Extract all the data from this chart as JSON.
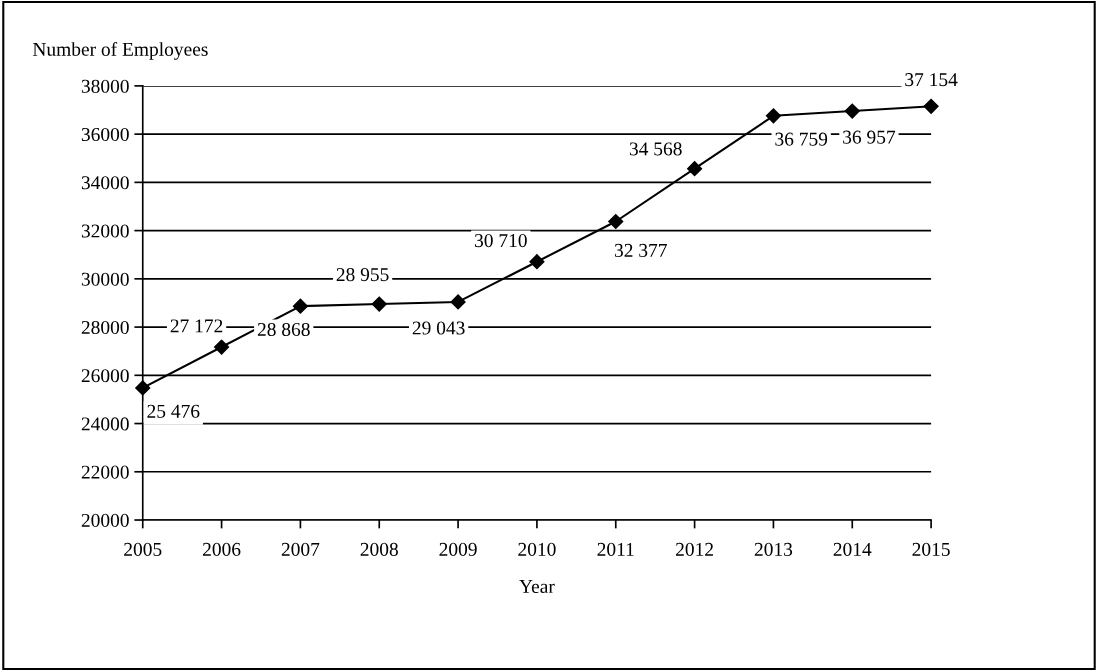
{
  "chart_data": {
    "type": "line",
    "xlabel": "Year",
    "ylabel": "Number of Employees",
    "categories": [
      "2005",
      "2006",
      "2007",
      "2008",
      "2009",
      "2010",
      "2011",
      "2012",
      "2013",
      "2014",
      "2015"
    ],
    "series": [
      {
        "color": "#000000",
        "values": [
          25476,
          27172,
          28868,
          28955,
          29043,
          30710,
          32377,
          34568,
          36759,
          36957,
          37154
        ],
        "value_labels": [
          "25 476",
          "27 172",
          "28 868",
          "28 955",
          "29 043",
          "30 710",
          "32 377",
          "34 568",
          "36 759",
          "36 957",
          "37 154"
        ]
      }
    ],
    "ylim": [
      20000,
      38000
    ],
    "yticks": [
      20000,
      22000,
      24000,
      26000,
      28000,
      30000,
      32000,
      34000,
      36000,
      38000
    ],
    "grid": "y",
    "marker": "diamond",
    "line_style": "solid",
    "legend": false
  }
}
